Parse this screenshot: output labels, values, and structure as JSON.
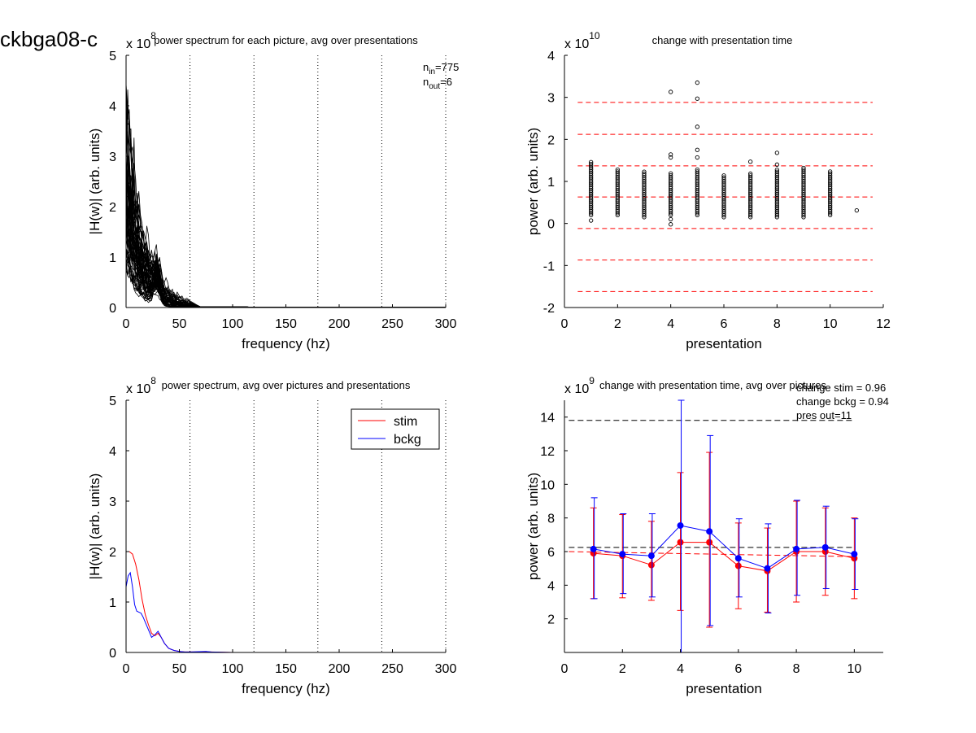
{
  "page": {
    "id_label": "ckbga08-c"
  },
  "colors": {
    "stim": "#ff0000",
    "bckg": "#0000ff",
    "ref_red": "#ff0000",
    "ref_black": "#000000"
  },
  "chart_data": [
    {
      "type": "line",
      "title": "power spectrum for each picture, avg over presentations",
      "xlabel": "frequency (hz)",
      "ylabel": "|H(w)| (arb. units)",
      "xlim": [
        0,
        300
      ],
      "ylim": [
        0,
        5
      ],
      "x_ticks": [
        "0",
        "50",
        "100",
        "150",
        "200",
        "250",
        "300"
      ],
      "y_ticks": [
        "0",
        "1",
        "2",
        "3",
        "4",
        "5"
      ],
      "y_exponent": "8",
      "exponent_prefix": "x 10",
      "vertical_lines_x": [
        60,
        120,
        180,
        240,
        300
      ],
      "annotations": {
        "n_in": "775",
        "n_out": "6",
        "n_label": "n",
        "in_sub": "in",
        "out_sub": "out"
      },
      "series_count_drawn": 60
    },
    {
      "type": "scatter",
      "title": "change with presentation time",
      "xlabel": "presentation",
      "ylabel": "power (arb. units)",
      "xlim": [
        0,
        12
      ],
      "ylim": [
        -2,
        4
      ],
      "x_ticks": [
        "0",
        "2",
        "4",
        "6",
        "8",
        "10",
        "12"
      ],
      "y_ticks": [
        "-2",
        "-1",
        "0",
        "1",
        "2",
        "3",
        "4"
      ],
      "y_exponent": "10",
      "exponent_prefix": "x 10",
      "reference_lines_y": [
        2.88,
        2.12,
        1.37,
        0.63,
        -0.12,
        -0.87,
        -1.62
      ],
      "outliers": [
        [
          4,
          3.13
        ],
        [
          5,
          3.35
        ],
        [
          5,
          2.97
        ],
        [
          5,
          2.3
        ],
        [
          5,
          1.75
        ],
        [
          5,
          1.57
        ],
        [
          4,
          1.64
        ],
        [
          4,
          1.57
        ],
        [
          7,
          1.47
        ],
        [
          8,
          1.68
        ],
        [
          8,
          1.4
        ],
        [
          11,
          0.31
        ],
        [
          1,
          0.07
        ],
        [
          4,
          -0.02
        ],
        [
          4,
          0.1
        ]
      ],
      "column_ranges": [
        [
          1,
          0.2,
          1.5
        ],
        [
          2,
          0.2,
          1.28
        ],
        [
          3,
          0.15,
          1.26
        ],
        [
          4,
          0.2,
          1.2
        ],
        [
          5,
          0.2,
          1.3
        ],
        [
          6,
          0.15,
          1.15
        ],
        [
          7,
          0.15,
          1.2
        ],
        [
          8,
          0.15,
          1.3
        ],
        [
          9,
          0.15,
          1.33
        ],
        [
          10,
          0.2,
          1.27
        ]
      ]
    },
    {
      "type": "line",
      "title": "power spectrum, avg over pictures and presentations",
      "xlabel": "frequency (hz)",
      "ylabel": "|H(w)| (arb. units)",
      "xlim": [
        0,
        300
      ],
      "ylim": [
        0,
        5
      ],
      "x_ticks": [
        "0",
        "50",
        "100",
        "150",
        "200",
        "250",
        "300"
      ],
      "y_ticks": [
        "0",
        "1",
        "2",
        "3",
        "4",
        "5"
      ],
      "y_exponent": "8",
      "exponent_prefix": "x 10",
      "vertical_lines_x": [
        60,
        120,
        180,
        240,
        300
      ],
      "legend": [
        "stim",
        "bckg"
      ],
      "legend_position": "top-right",
      "series": [
        {
          "name": "stim",
          "x": [
            0,
            3,
            6,
            9,
            12,
            15,
            18,
            21,
            24,
            27,
            30,
            33,
            36,
            40,
            45,
            50,
            55,
            60,
            80,
            100,
            150,
            200,
            250,
            300
          ],
          "y": [
            2.0,
            2.0,
            1.95,
            1.75,
            1.45,
            1.05,
            0.75,
            0.55,
            0.38,
            0.33,
            0.38,
            0.3,
            0.18,
            0.08,
            0.04,
            0.02,
            0.01,
            0.01,
            0.01,
            0.0,
            0.0,
            0.0,
            0.0,
            0.0
          ]
        },
        {
          "name": "bckg",
          "x": [
            0,
            2,
            4,
            6,
            8,
            10,
            12,
            14,
            16,
            18,
            21,
            24,
            27,
            30,
            33,
            36,
            40,
            45,
            50,
            55,
            60,
            75,
            80,
            100,
            150,
            200,
            250,
            300
          ],
          "y": [
            1.3,
            1.52,
            1.58,
            1.3,
            0.95,
            0.82,
            0.8,
            0.78,
            0.7,
            0.6,
            0.45,
            0.3,
            0.35,
            0.42,
            0.3,
            0.18,
            0.08,
            0.04,
            0.02,
            0.01,
            0.01,
            0.02,
            0.01,
            0.0,
            0.0,
            0.0,
            0.0,
            0.0
          ]
        }
      ]
    },
    {
      "type": "line",
      "title": "change with presentation time, avg over pictures",
      "xlabel": "presentation",
      "ylabel": "power (arb. units)",
      "xlim": [
        0,
        11
      ],
      "ylim": [
        0,
        15
      ],
      "x_ticks": [
        "0",
        "2",
        "4",
        "6",
        "8",
        "10"
      ],
      "y_ticks": [
        "2",
        "4",
        "6",
        "8",
        "10",
        "12",
        "14"
      ],
      "y_exponent": "9",
      "exponent_prefix": "x 10",
      "notes": [
        "change stim = 0.96",
        "change bckg = 0.94",
        "pres out=11"
      ],
      "reference_lines": [
        {
          "color": "black",
          "y_start": 13.8,
          "y_end": 13.8
        },
        {
          "color": "black",
          "y_start": 6.25,
          "y_end": 6.25
        },
        {
          "color": "red",
          "y_start": 6.0,
          "y_end": 5.7
        }
      ],
      "x": [
        1,
        2,
        3,
        4,
        5,
        6,
        7,
        8,
        9,
        10
      ],
      "series": [
        {
          "name": "stim",
          "values": [
            5.9,
            5.75,
            5.2,
            6.55,
            6.55,
            5.15,
            4.85,
            6.0,
            6.0,
            5.6
          ],
          "err_low": [
            3.2,
            3.25,
            3.1,
            2.5,
            1.5,
            2.6,
            2.4,
            3.0,
            3.4,
            3.2
          ],
          "err_high": [
            8.6,
            8.2,
            7.8,
            10.7,
            11.9,
            7.7,
            7.4,
            9.0,
            8.6,
            8.0
          ]
        },
        {
          "name": "bckg",
          "values": [
            6.15,
            5.85,
            5.75,
            7.55,
            7.2,
            5.6,
            5.0,
            6.15,
            6.25,
            5.85
          ],
          "err_low": [
            3.2,
            3.5,
            3.3,
            0,
            1.6,
            3.3,
            2.35,
            3.4,
            3.8,
            3.75
          ],
          "err_high": [
            9.2,
            8.25,
            8.25,
            15,
            12.9,
            7.95,
            7.65,
            9.05,
            8.7,
            7.95
          ]
        }
      ]
    }
  ]
}
